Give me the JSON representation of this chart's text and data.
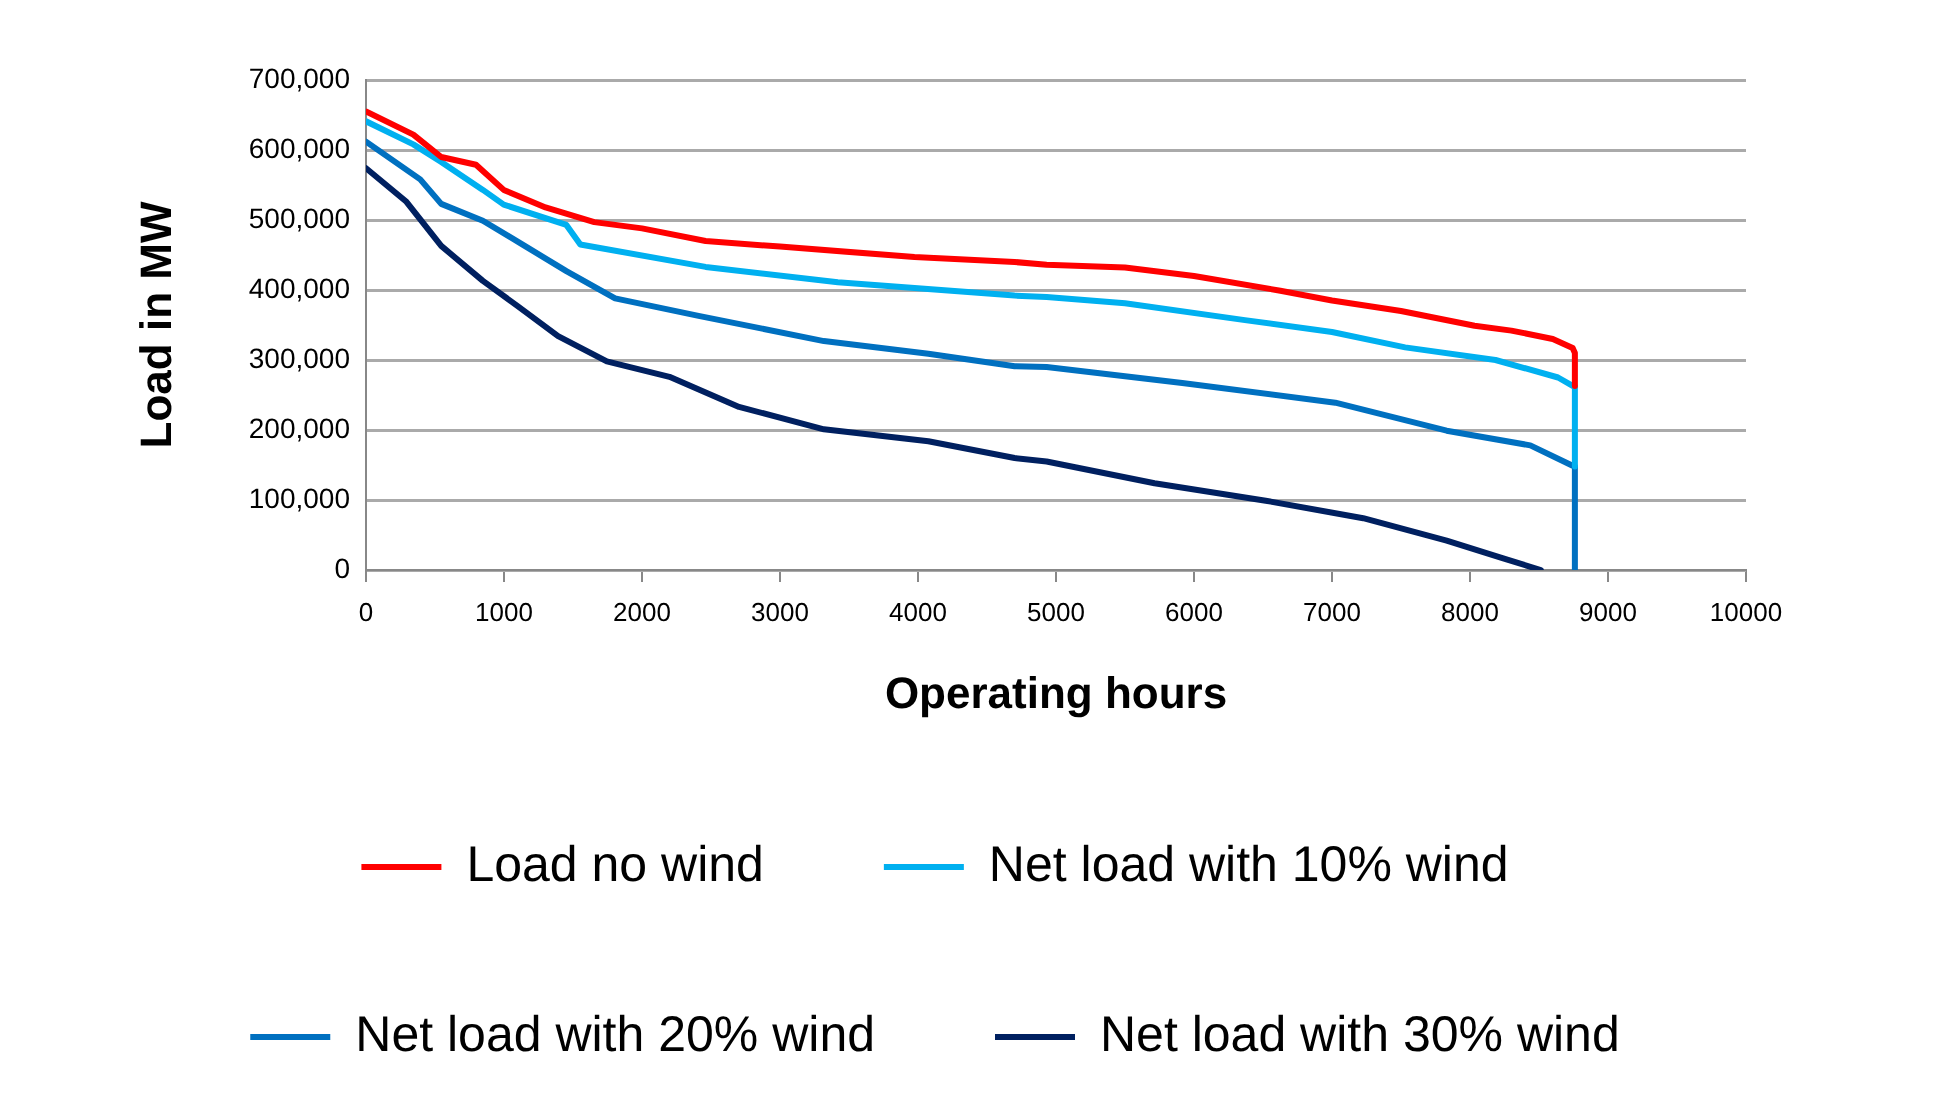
{
  "chart_data": {
    "type": "line",
    "xlabel": "Operating hours",
    "ylabel": "Load in MW",
    "xlim": [
      0,
      10000
    ],
    "xticks": [
      0,
      1000,
      2000,
      3000,
      4000,
      5000,
      6000,
      7000,
      8000,
      9000,
      10000
    ],
    "ylim": [
      0,
      700000
    ],
    "yticks": [
      {
        "value": 0,
        "label": "0"
      },
      {
        "value": 100000,
        "label": "100,000"
      },
      {
        "value": 200000,
        "label": "200,000"
      },
      {
        "value": 300000,
        "label": "300,000"
      },
      {
        "value": 400000,
        "label": "400,000"
      },
      {
        "value": 500000,
        "label": "500,000"
      },
      {
        "value": 600000,
        "label": "600,000"
      },
      {
        "value": 700000,
        "label": "700,000"
      }
    ],
    "grid": "y",
    "legend": "bottom",
    "marker": "none",
    "line_style": "solid",
    "series": [
      {
        "name": "Load no wind",
        "color": "#ff0000",
        "x": [
          0,
          343,
          545,
          797,
          998,
          1301,
          1654,
          2000,
          2461,
          3000,
          3974,
          4700,
          4932,
          5500,
          6000,
          6626,
          7000,
          7500,
          8033,
          8300,
          8600,
          8744,
          8760,
          8760
        ],
        "values": [
          655000,
          622000,
          590000,
          579000,
          543000,
          518000,
          497000,
          488000,
          470000,
          462000,
          447000,
          440000,
          436000,
          432000,
          420000,
          399000,
          385000,
          370000,
          349000,
          342000,
          330000,
          317000,
          310000,
          263000
        ]
      },
      {
        "name": "Net load with 10% wind",
        "color": "#00b0f0",
        "x": [
          0,
          343,
          545,
          847,
          998,
          1452,
          1553,
          2461,
          3419,
          4700,
          4932,
          5500,
          6369,
          7000,
          7530,
          8185,
          8638,
          8744,
          8760,
          8760
        ],
        "values": [
          641000,
          608000,
          583000,
          543000,
          522000,
          493000,
          465000,
          433000,
          411000,
          392000,
          390000,
          381000,
          357000,
          340000,
          318000,
          300000,
          275000,
          263000,
          262000,
          148000
        ]
      },
      {
        "name": "Net load with 20% wind",
        "color": "#0070c0",
        "x": [
          0,
          393,
          545,
          847,
          1150,
          1452,
          1805,
          2410,
          3318,
          4075,
          4700,
          4932,
          5915,
          7024,
          7831,
          8437,
          8744,
          8760,
          8760
        ],
        "values": [
          612000,
          558000,
          523000,
          499000,
          463000,
          427000,
          388000,
          363000,
          327000,
          309000,
          291000,
          290000,
          267000,
          239000,
          199000,
          178000,
          149000,
          148000,
          0
        ]
      },
      {
        "name": "Net load with 30% wind",
        "color": "#002060",
        "x": [
          0,
          293,
          545,
          847,
          1099,
          1392,
          1745,
          2199,
          2703,
          3318,
          4075,
          4700,
          4932,
          5714,
          6520,
          7226,
          7831,
          8235,
          8513
        ],
        "values": [
          574000,
          526000,
          463000,
          413000,
          377000,
          334000,
          298000,
          276000,
          233000,
          201000,
          184000,
          160000,
          155000,
          124000,
          99000,
          74000,
          42000,
          17000,
          0
        ]
      }
    ]
  }
}
